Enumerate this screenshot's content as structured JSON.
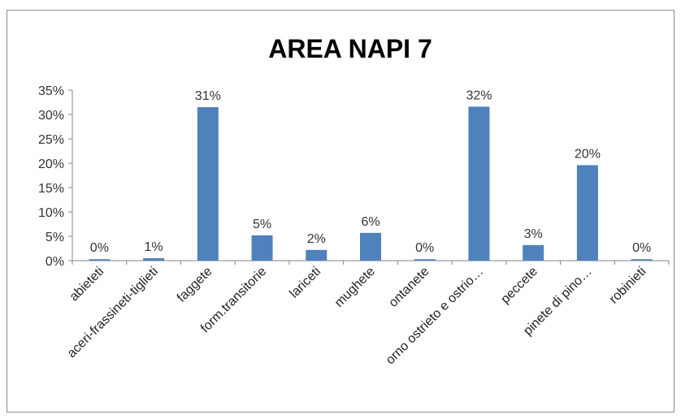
{
  "chart_data": {
    "type": "bar",
    "title": "AREA NAPI 7",
    "categories": [
      "abieteti",
      "aceri-frassineti-tiglieti",
      "faggete",
      "form.transitorie",
      "lariceti",
      "mughete",
      "ontanete",
      "orno ostrieto e ostrio…",
      "peccete",
      "pinete di pino…",
      "robinieti"
    ],
    "values": [
      0.3,
      0.5,
      31.5,
      5.2,
      2.2,
      5.7,
      0.3,
      31.6,
      3.2,
      19.6,
      0.3
    ],
    "data_labels": [
      "0%",
      "1%",
      "31%",
      "5%",
      "2%",
      "6%",
      "0%",
      "32%",
      "3%",
      "20%",
      "0%"
    ],
    "ylim": [
      0,
      35
    ],
    "yticks": [
      "0%",
      "5%",
      "10%",
      "15%",
      "20%",
      "25%",
      "30%",
      "35%"
    ],
    "bar_color": "#4f81bd",
    "grid": false,
    "legend": "none"
  }
}
